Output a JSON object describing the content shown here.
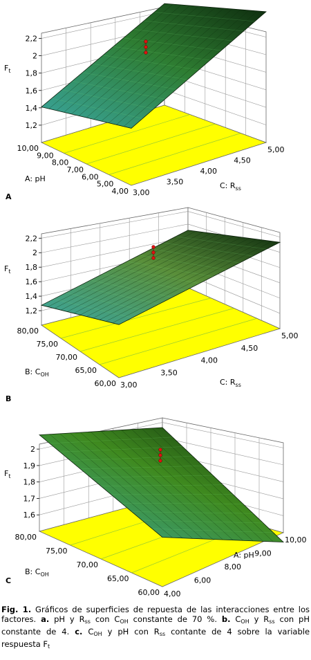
{
  "chart_data": [
    {
      "type": "surface",
      "panel": "A",
      "zlabel": "F",
      "zlabel_sub": "t",
      "zticks": [
        "1,2",
        "1,4",
        "1,6",
        "1,8",
        "2",
        "2,2"
      ],
      "zlim": [
        1.1,
        2.2
      ],
      "xlabel": "C: R",
      "xlabel_sub": "ss",
      "xticks": [
        "3,00",
        "3,50",
        "4,00",
        "4,50",
        "5,00"
      ],
      "ylabel": "A: pH",
      "yticks": [
        "4,00",
        "5,00",
        "6,00",
        "7,00",
        "8,00",
        "9,00",
        "10,00"
      ],
      "corner_z": {
        "near_left": 1.38,
        "near_right": 1.55,
        "far_right": 2.13,
        "far_left": 1.9
      },
      "surface_color": "#2e7d32",
      "floor_color": "#ffff00"
    },
    {
      "type": "surface",
      "panel": "B",
      "zlabel": "F",
      "zlabel_sub": "t",
      "zticks": [
        "1,2",
        "1,4",
        "1,6",
        "1,8",
        "2",
        "2,2"
      ],
      "zlim": [
        1.1,
        2.2
      ],
      "xlabel": "C: R",
      "xlabel_sub": "ss",
      "xticks": [
        "3,00",
        "3,50",
        "4,00",
        "4,50",
        "5,00"
      ],
      "ylabel": "B: C",
      "ylabel_sub": "OH",
      "yticks": [
        "60,00",
        "65,00",
        "70,00",
        "75,00",
        "80,00"
      ],
      "corner_z": {
        "near_left": 1.28,
        "near_right": 1.58,
        "far_right": 1.88,
        "far_left": 1.62
      },
      "surface_color": "#5a8f3a",
      "floor_color": "#ffff00"
    },
    {
      "type": "surface",
      "panel": "C",
      "zlabel": "F",
      "zlabel_sub": "t",
      "zticks": [
        "1,6",
        "1,7",
        "1,8",
        "1,9",
        "2"
      ],
      "zlim": [
        1.5,
        2.0
      ],
      "xlabel": "A: pH",
      "xticks": [
        "4,00",
        "6,00",
        "8,00",
        "9,00",
        "10,00"
      ],
      "ylabel": "B: C",
      "ylabel_sub": "OH",
      "yticks": [
        "60,00",
        "65,00",
        "70,00",
        "75,00",
        "80,00"
      ],
      "corner_z": {
        "far_left": 1.91,
        "far_right": 1.8,
        "near_right": 1.46,
        "near_left": 1.71
      },
      "surface_color": "#3f8a1f",
      "floor_color": "#ffff00"
    }
  ],
  "caption": {
    "fig": "Fig. 1.",
    "t1": " Gráficos de superficies de repuesta de las interacciones entre los factores. ",
    "a": "a.",
    "t2": " pH y R",
    "s_ss1": "ss",
    "t3": " con C",
    "s_oh1": "OH",
    "t4": " constante de 70 %. ",
    "b": "b.",
    "t5": " C",
    "s_oh2": "OH",
    "t6": " y R",
    "s_ss2": "ss",
    "t7": " con pH constante de 4. ",
    "c": "c.",
    "t8": " C",
    "s_oh3": "OH",
    "t9": "  y pH con R",
    "s_ss3": "ss",
    "t10": " contante de 4 sobre la variable respuesta F",
    "s_t": "t"
  }
}
